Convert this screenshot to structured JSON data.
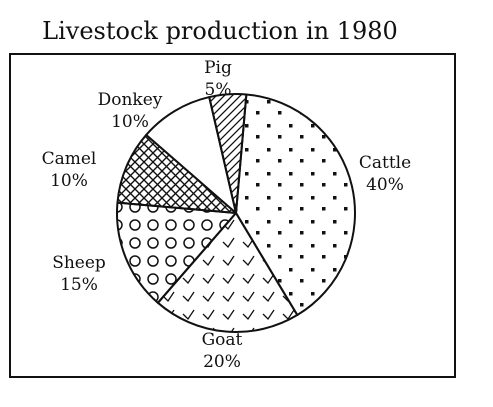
{
  "chart_data": {
    "type": "pie",
    "title": "Livestock production in 1980",
    "slices": [
      {
        "label": "Cattle",
        "value": 40,
        "value_label": "40%",
        "pattern": "dots"
      },
      {
        "label": "Goat",
        "value": 20,
        "value_label": "20%",
        "pattern": "checkmarks"
      },
      {
        "label": "Sheep",
        "value": 15,
        "value_label": "15%",
        "pattern": "circles"
      },
      {
        "label": "Camel",
        "value": 10,
        "value_label": "10%",
        "pattern": "crosshatch"
      },
      {
        "label": "Donkey",
        "value": 10,
        "value_label": "10%",
        "pattern": "blank"
      },
      {
        "label": "Pig",
        "value": 5,
        "value_label": "5%",
        "pattern": "diagonal-lines"
      }
    ],
    "colors": {
      "ink": "#111111",
      "background": "#ffffff"
    }
  }
}
